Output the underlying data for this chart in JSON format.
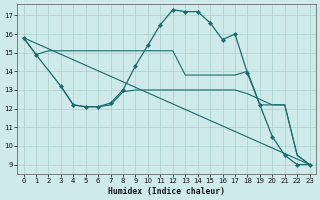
{
  "xlabel": "Humidex (Indice chaleur)",
  "background_color": "#ceeaea",
  "grid_color": "#aacece",
  "line_color": "#1a6b6b",
  "xlim": [
    -0.5,
    23.5
  ],
  "ylim": [
    8.5,
    17.6
  ],
  "yticks": [
    9,
    10,
    11,
    12,
    13,
    14,
    15,
    16,
    17
  ],
  "xticks": [
    0,
    1,
    2,
    3,
    4,
    5,
    6,
    7,
    8,
    9,
    10,
    11,
    12,
    13,
    14,
    15,
    16,
    17,
    18,
    19,
    20,
    21,
    22,
    23
  ],
  "line1_x": [
    0,
    1,
    3,
    4,
    5,
    6,
    7,
    8,
    9,
    10,
    11,
    12,
    13,
    14,
    15,
    16,
    17,
    18,
    19,
    20,
    21,
    22,
    23
  ],
  "line1_y": [
    15.8,
    14.9,
    13.2,
    12.2,
    12.1,
    12.1,
    12.3,
    13.0,
    14.3,
    15.4,
    16.5,
    17.3,
    17.2,
    17.2,
    16.6,
    15.7,
    16.0,
    13.9,
    12.2,
    10.5,
    9.5,
    9.0,
    9.0
  ],
  "line2_x": [
    0,
    1,
    2,
    3,
    4,
    5,
    6,
    7,
    8,
    9,
    10,
    11,
    12,
    13,
    14,
    15,
    16,
    17,
    18,
    19,
    20,
    21,
    22,
    23
  ],
  "line2_y": [
    15.8,
    14.9,
    15.1,
    15.1,
    15.1,
    15.1,
    15.1,
    15.1,
    15.1,
    15.1,
    15.1,
    15.1,
    15.1,
    13.8,
    13.8,
    13.8,
    13.8,
    13.8,
    14.0,
    12.2,
    12.2,
    12.2,
    9.5,
    9.0
  ],
  "line3_x": [
    3,
    4,
    5,
    6,
    7,
    8,
    9,
    10,
    11,
    12,
    13,
    14,
    15,
    16,
    17,
    18,
    19,
    20,
    21,
    22,
    23
  ],
  "line3_y": [
    13.2,
    12.2,
    12.1,
    12.1,
    12.2,
    12.9,
    13.0,
    13.0,
    13.0,
    13.0,
    13.0,
    13.0,
    13.0,
    13.0,
    13.0,
    12.8,
    12.5,
    12.2,
    12.2,
    9.5,
    9.0
  ],
  "line4_x": [
    0,
    23
  ],
  "line4_y": [
    15.8,
    9.0
  ]
}
